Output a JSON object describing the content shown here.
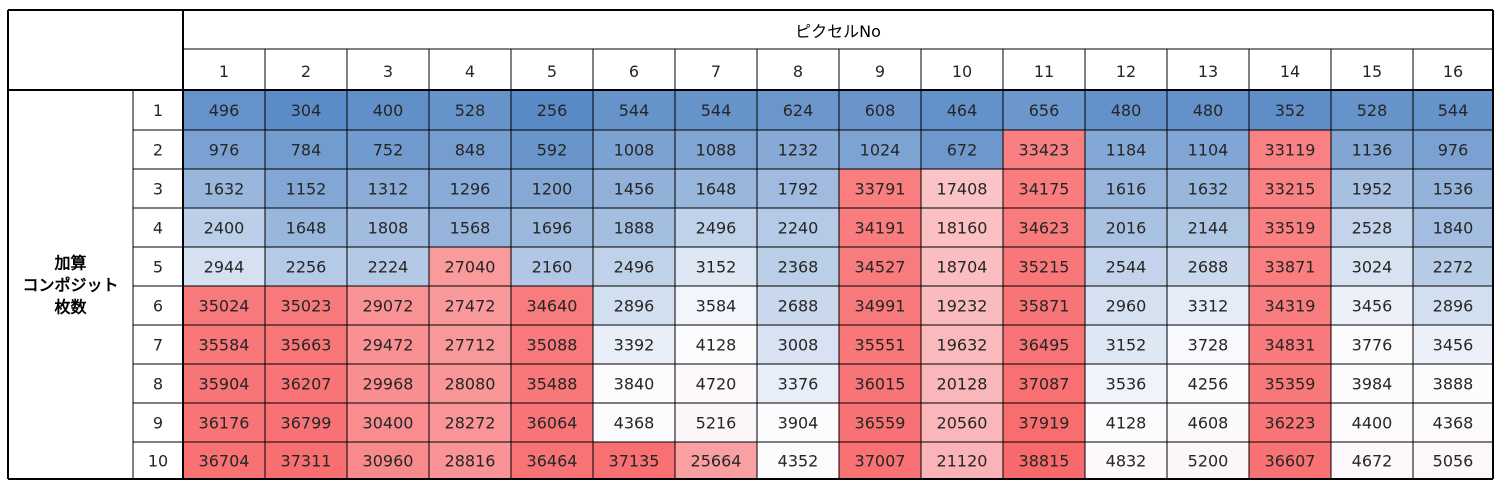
{
  "chart_data": {
    "type": "heatmap",
    "title": "ピクセルNo",
    "ylabel": "加算\nコンポジット\n枚数",
    "columns": [
      "1",
      "2",
      "3",
      "4",
      "5",
      "6",
      "7",
      "8",
      "9",
      "10",
      "11",
      "12",
      "13",
      "14",
      "15",
      "16"
    ],
    "rows": [
      "1",
      "2",
      "3",
      "4",
      "5",
      "6",
      "7",
      "8",
      "9",
      "10"
    ],
    "values": [
      [
        496,
        304,
        400,
        528,
        256,
        544,
        544,
        624,
        608,
        464,
        656,
        480,
        480,
        352,
        528,
        544
      ],
      [
        976,
        784,
        752,
        848,
        592,
        1008,
        1088,
        1232,
        1024,
        672,
        33423,
        1184,
        1104,
        33119,
        1136,
        976
      ],
      [
        1632,
        1152,
        1312,
        1296,
        1200,
        1456,
        1648,
        1792,
        33791,
        17408,
        34175,
        1616,
        1632,
        33215,
        1952,
        1536
      ],
      [
        2400,
        1648,
        1808,
        1568,
        1696,
        1888,
        2496,
        2240,
        34191,
        18160,
        34623,
        2016,
        2144,
        33519,
        2528,
        1840
      ],
      [
        2944,
        2256,
        2224,
        27040,
        2160,
        2496,
        3152,
        2368,
        34527,
        18704,
        35215,
        2544,
        2688,
        33871,
        3024,
        2272
      ],
      [
        35024,
        35023,
        29072,
        27472,
        34640,
        2896,
        3584,
        2688,
        34991,
        19232,
        35871,
        2960,
        3312,
        34319,
        3456,
        2896
      ],
      [
        35584,
        35663,
        29472,
        27712,
        35088,
        3392,
        4128,
        3008,
        35551,
        19632,
        36495,
        3152,
        3728,
        34831,
        3776,
        3456
      ],
      [
        35904,
        36207,
        29968,
        28080,
        35488,
        3840,
        4720,
        3376,
        36015,
        20128,
        37087,
        3536,
        4256,
        35359,
        3984,
        3888
      ],
      [
        36176,
        36799,
        30400,
        28272,
        36064,
        4368,
        5216,
        3904,
        36559,
        20560,
        37919,
        4128,
        4608,
        36223,
        4400,
        4368
      ],
      [
        36704,
        37311,
        30960,
        28816,
        36464,
        37135,
        25664,
        4352,
        37007,
        21120,
        38815,
        4832,
        5200,
        36607,
        4672,
        5056
      ]
    ],
    "colors": {
      "low": "#5a8ac6",
      "mid": "#fcfcff",
      "high": "#f8696b"
    }
  }
}
